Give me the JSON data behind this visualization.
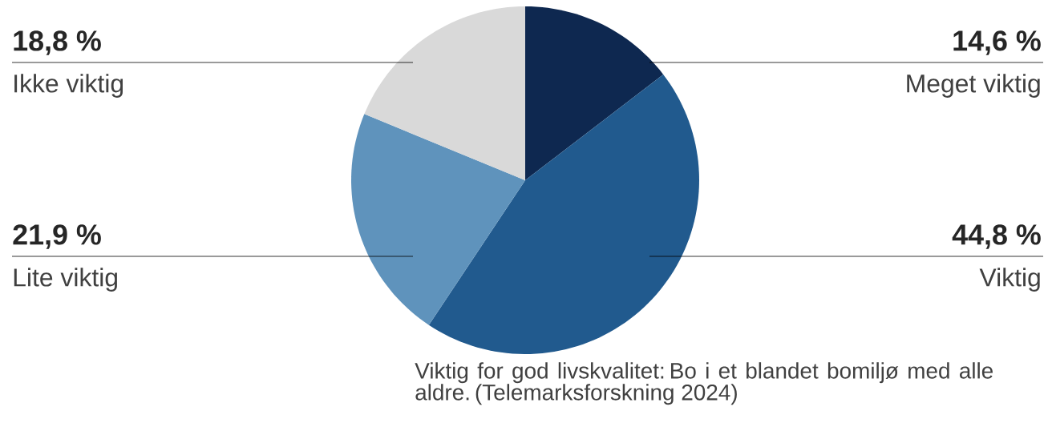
{
  "chart_data": {
    "type": "pie",
    "categories": [
      "Meget viktig",
      "Viktig",
      "Lite viktig",
      "Ikke viktig"
    ],
    "values": [
      14.6,
      44.8,
      21.9,
      18.8
    ],
    "value_labels": [
      "14,6 %",
      "44,8 %",
      "21,9 %",
      "18,8 %"
    ],
    "colors": [
      "#0e2850",
      "#215a8e",
      "#5f93bc",
      "#d9d9d9"
    ],
    "annotations": [
      "Viktig for god livskvalitet: Bo i et blandet bomiljø med alle aldre. (Telemarksforskning 2024)"
    ]
  }
}
